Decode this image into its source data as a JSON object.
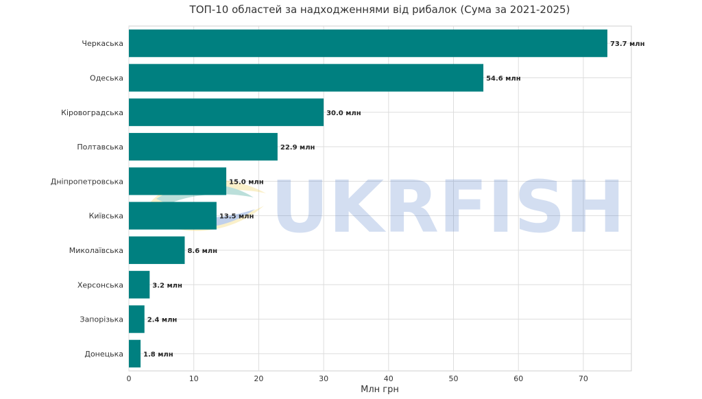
{
  "chart_data": {
    "type": "bar",
    "orientation": "horizontal",
    "title": "ТОП-10 областей за надходженнями від рибалок (Сума за 2021-2025)",
    "xlabel": "Млн грн",
    "ylabel": "",
    "categories": [
      "Черкаська",
      "Одеська",
      "Кіровоградська",
      "Полтавська",
      "Дніпропетровська",
      "Київська",
      "Миколаївська",
      "Херсонська",
      "Запорізька",
      "Донецька"
    ],
    "values": [
      73.7,
      54.6,
      30.0,
      22.9,
      15.0,
      13.5,
      8.6,
      3.2,
      2.4,
      1.8
    ],
    "value_labels": [
      "73.7 млн",
      "54.6 млн",
      "30.0 млн",
      "22.9 млн",
      "15.0 млн",
      "13.5 млн",
      "8.6 млн",
      "3.2 млн",
      "2.4 млн",
      "1.8 млн"
    ],
    "xticks": [
      0,
      10,
      20,
      30,
      40,
      50,
      60,
      70
    ],
    "xlim": [
      0,
      77.4
    ],
    "grid": true,
    "bar_color": "#008080",
    "grid_color": "#dddddd"
  },
  "watermark": {
    "text": "UKRFISH",
    "text_color": "#3d6fc4",
    "logo_colors": [
      "#f2d35c",
      "#2f9e8f",
      "#3d6fc4"
    ]
  }
}
